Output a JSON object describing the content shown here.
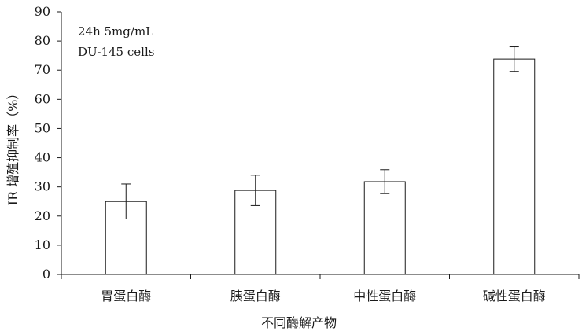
{
  "chart_data": {
    "type": "bar",
    "title": "",
    "annotation_lines": [
      "24h 5mg/mL",
      "DU-145 cells"
    ],
    "xlabel": "不同酶解产物",
    "ylabel": "IR 增殖抑制率（%）",
    "ylim": [
      0,
      90
    ],
    "yticks": [
      "0",
      "10",
      "20",
      "30",
      "40",
      "50",
      "60",
      "70",
      "80",
      "90"
    ],
    "yticks_values": [
      0,
      10,
      20,
      30,
      40,
      50,
      60,
      70,
      80,
      90
    ],
    "categories": [
      "胃蛋白酶",
      "胰蛋白酶",
      "中性蛋白酶",
      "碱性蛋白酶"
    ],
    "values": [
      25,
      28.8,
      31.8,
      73.8
    ],
    "error": [
      6,
      5.2,
      4.1,
      4.2
    ],
    "bar_color": "#ffffff",
    "line_color": "#1a1a1a",
    "grid": false,
    "legend": "none"
  }
}
